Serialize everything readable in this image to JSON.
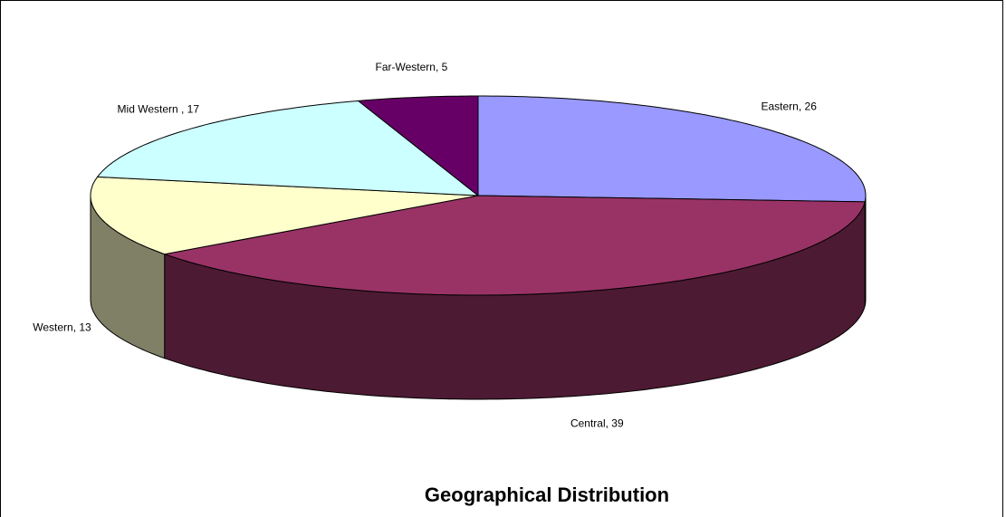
{
  "chart_data": {
    "type": "pie3d",
    "title": "Geographical Distribution",
    "categories": [
      "Eastern",
      "Central",
      "Western",
      "Mid Western",
      "Far-Western"
    ],
    "values": [
      26,
      39,
      13,
      17,
      5
    ],
    "value_labels": [
      "Eastern, 26",
      "Central, 39",
      "Western, 13",
      "Mid Western , 17",
      "Far-Western, 5"
    ],
    "colors": [
      "#9999ff",
      "#993366",
      "#ffffcc",
      "#ccffff",
      "#660066"
    ]
  }
}
